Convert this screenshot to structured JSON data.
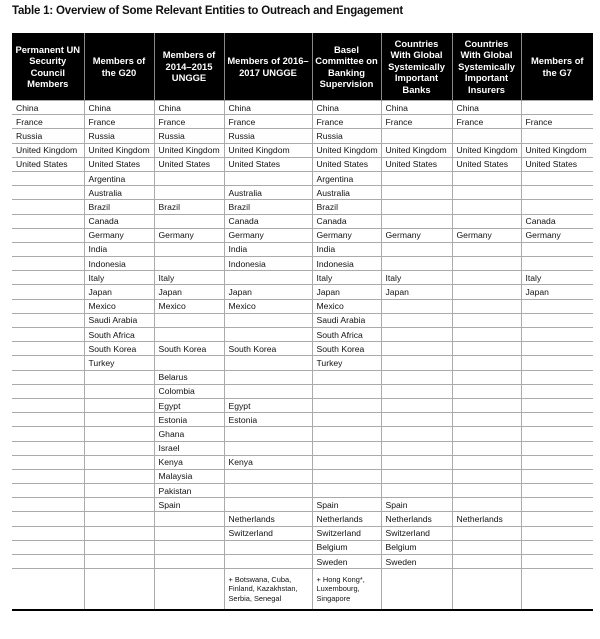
{
  "title": "Table 1: Overview of Some Relevant Entities to Outreach and Engagement",
  "columns": [
    "Permanent UN Security Council Members",
    "Members of the G20",
    "Members of 2014–2015 UNGGE",
    "Members of 2016–2017 UNGGE",
    "Basel Committee on Banking Supervision",
    "Countries With Global Systemically Important Banks",
    "Countries With Global Systemically Important Insurers",
    "Members of the G7"
  ],
  "rows": [
    [
      "China",
      "China",
      "China",
      "China",
      "China",
      "China",
      "China",
      ""
    ],
    [
      "France",
      "France",
      "France",
      "France",
      "France",
      "France",
      "France",
      "France"
    ],
    [
      "Russia",
      "Russia",
      "Russia",
      "Russia",
      "Russia",
      "",
      "",
      ""
    ],
    [
      "United Kingdom",
      "United Kingdom",
      "United Kingdom",
      "United Kingdom",
      "United Kingdom",
      "United Kingdom",
      "United Kingdom",
      "United Kingdom"
    ],
    [
      "United States",
      "United States",
      "United States",
      "United States",
      "United States",
      "United States",
      "United States",
      "United States"
    ],
    [
      "",
      "Argentina",
      "",
      "",
      "Argentina",
      "",
      "",
      ""
    ],
    [
      "",
      "Australia",
      "",
      "Australia",
      "Australia",
      "",
      "",
      ""
    ],
    [
      "",
      "Brazil",
      "Brazil",
      "Brazil",
      "Brazil",
      "",
      "",
      ""
    ],
    [
      "",
      "Canada",
      "",
      "Canada",
      "Canada",
      "",
      "",
      "Canada"
    ],
    [
      "",
      "Germany",
      "Germany",
      "Germany",
      "Germany",
      "Germany",
      "Germany",
      "Germany"
    ],
    [
      "",
      "India",
      "",
      "India",
      "India",
      "",
      "",
      ""
    ],
    [
      "",
      "Indonesia",
      "",
      "Indonesia",
      "Indonesia",
      "",
      "",
      ""
    ],
    [
      "",
      "Italy",
      "Italy",
      "",
      "Italy",
      "Italy",
      "",
      "Italy"
    ],
    [
      "",
      "Japan",
      "Japan",
      "Japan",
      "Japan",
      "Japan",
      "",
      "Japan"
    ],
    [
      "",
      "Mexico",
      "Mexico",
      "Mexico",
      "Mexico",
      "",
      "",
      ""
    ],
    [
      "",
      "Saudi Arabia",
      "",
      "",
      "Saudi Arabia",
      "",
      "",
      ""
    ],
    [
      "",
      "South Africa",
      "",
      "",
      "South Africa",
      "",
      "",
      ""
    ],
    [
      "",
      "South Korea",
      "South Korea",
      "South Korea",
      "South Korea",
      "",
      "",
      ""
    ],
    [
      "",
      "Turkey",
      "",
      "",
      "Turkey",
      "",
      "",
      ""
    ],
    [
      "",
      "",
      "Belarus",
      "",
      "",
      "",
      "",
      ""
    ],
    [
      "",
      "",
      "Colombia",
      "",
      "",
      "",
      "",
      ""
    ],
    [
      "",
      "",
      "Egypt",
      "Egypt",
      "",
      "",
      "",
      ""
    ],
    [
      "",
      "",
      "Estonia",
      "Estonia",
      "",
      "",
      "",
      ""
    ],
    [
      "",
      "",
      "Ghana",
      "",
      "",
      "",
      "",
      ""
    ],
    [
      "",
      "",
      "Israel",
      "",
      "",
      "",
      "",
      ""
    ],
    [
      "",
      "",
      "Kenya",
      "Kenya",
      "",
      "",
      "",
      ""
    ],
    [
      "",
      "",
      "Malaysia",
      "",
      "",
      "",
      "",
      ""
    ],
    [
      "",
      "",
      "Pakistan",
      "",
      "",
      "",
      "",
      ""
    ],
    [
      "",
      "",
      "Spain",
      "",
      "Spain",
      "Spain",
      "",
      ""
    ],
    [
      "",
      "",
      "",
      "Netherlands",
      "Netherlands",
      "Netherlands",
      "Netherlands",
      ""
    ],
    [
      "",
      "",
      "",
      "Switzerland",
      "Switzerland",
      "Switzerland",
      "",
      ""
    ],
    [
      "",
      "",
      "",
      "",
      "Belgium",
      "Belgium",
      "",
      ""
    ],
    [
      "",
      "",
      "",
      "",
      "Sweden",
      "Sweden",
      "",
      ""
    ]
  ],
  "notes": [
    "",
    "",
    "",
    "+ Botswana, Cuba, Finland, Kazakhstan, Serbia, Senegal",
    "+ Hong Kong*, Luxembourg, Singapore",
    "",
    "",
    ""
  ]
}
